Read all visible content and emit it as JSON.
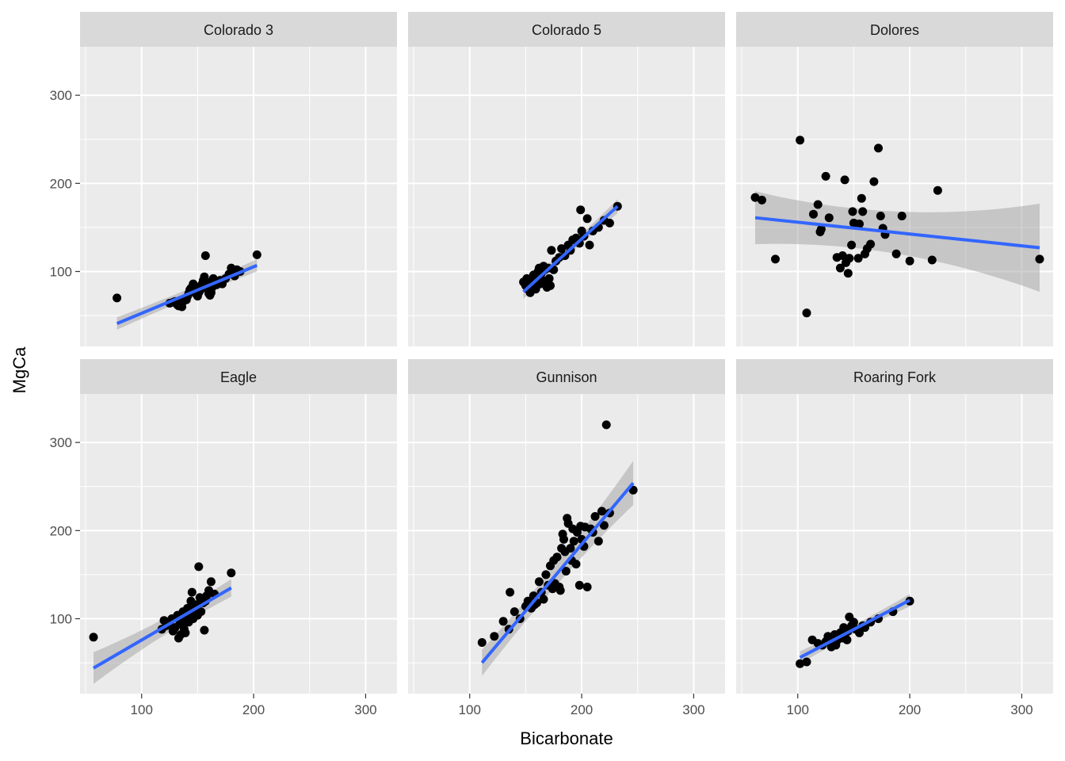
{
  "chart_data": {
    "type": "scatter",
    "title": "",
    "xlabel": "Bicarbonate",
    "ylabel": "MgCa",
    "xlim": [
      45,
      328
    ],
    "ylim": [
      15,
      355
    ],
    "x_ticks": [
      100,
      200,
      300
    ],
    "y_ticks": [
      100,
      200,
      300
    ],
    "grid": true,
    "facets": [
      {
        "name": "Colorado 3",
        "fit": {
          "x": [
            78,
            203
          ],
          "y": [
            41,
            107
          ],
          "se_width": [
            7,
            4,
            7
          ]
        },
        "points": [
          [
            78,
            70
          ],
          [
            125,
            64
          ],
          [
            128,
            65
          ],
          [
            130,
            66
          ],
          [
            132,
            62
          ],
          [
            133,
            61
          ],
          [
            135,
            64
          ],
          [
            136,
            60
          ],
          [
            138,
            67
          ],
          [
            140,
            68
          ],
          [
            141,
            72
          ],
          [
            142,
            75
          ],
          [
            143,
            79
          ],
          [
            144,
            81
          ],
          [
            145,
            82
          ],
          [
            146,
            86
          ],
          [
            147,
            80
          ],
          [
            148,
            77
          ],
          [
            149,
            74
          ],
          [
            150,
            72
          ],
          [
            151,
            76
          ],
          [
            152,
            78
          ],
          [
            153,
            84
          ],
          [
            154,
            86
          ],
          [
            155,
            90
          ],
          [
            156,
            94
          ],
          [
            157,
            118
          ],
          [
            158,
            88
          ],
          [
            159,
            80
          ],
          [
            160,
            75
          ],
          [
            161,
            73
          ],
          [
            162,
            76
          ],
          [
            163,
            82
          ],
          [
            164,
            92
          ],
          [
            165,
            88
          ],
          [
            167,
            85
          ],
          [
            170,
            90
          ],
          [
            172,
            86
          ],
          [
            175,
            92
          ],
          [
            178,
            97
          ],
          [
            180,
            104
          ],
          [
            183,
            95
          ],
          [
            185,
            102
          ],
          [
            188,
            100
          ],
          [
            203,
            119
          ]
        ]
      },
      {
        "name": "Colorado 5",
        "fit": {
          "x": [
            148,
            232
          ],
          "y": [
            77,
            174
          ],
          "se_width": [
            8,
            3,
            8
          ]
        },
        "points": [
          [
            148,
            88
          ],
          [
            150,
            84
          ],
          [
            151,
            92
          ],
          [
            152,
            80
          ],
          [
            153,
            86
          ],
          [
            154,
            76
          ],
          [
            155,
            82
          ],
          [
            156,
            90
          ],
          [
            157,
            96
          ],
          [
            158,
            84
          ],
          [
            159,
            80
          ],
          [
            160,
            92
          ],
          [
            161,
            100
          ],
          [
            162,
            104
          ],
          [
            163,
            86
          ],
          [
            164,
            98
          ],
          [
            165,
            90
          ],
          [
            166,
            106
          ],
          [
            167,
            102
          ],
          [
            168,
            88
          ],
          [
            169,
            82
          ],
          [
            170,
            104
          ],
          [
            171,
            92
          ],
          [
            172,
            84
          ],
          [
            173,
            124
          ],
          [
            175,
            102
          ],
          [
            177,
            112
          ],
          [
            180,
            116
          ],
          [
            182,
            126
          ],
          [
            185,
            118
          ],
          [
            188,
            130
          ],
          [
            190,
            124
          ],
          [
            192,
            136
          ],
          [
            195,
            138
          ],
          [
            198,
            132
          ],
          [
            199,
            170
          ],
          [
            200,
            146
          ],
          [
            202,
            140
          ],
          [
            205,
            160
          ],
          [
            207,
            130
          ],
          [
            210,
            146
          ],
          [
            215,
            150
          ],
          [
            220,
            158
          ],
          [
            225,
            155
          ],
          [
            232,
            174
          ]
        ]
      },
      {
        "name": "Dolores",
        "fit": {
          "x": [
            62,
            316
          ],
          "y": [
            161,
            127
          ],
          "se_width": [
            30,
            8,
            50
          ]
        },
        "points": [
          [
            62,
            184
          ],
          [
            68,
            181
          ],
          [
            80,
            114
          ],
          [
            102,
            249
          ],
          [
            108,
            53
          ],
          [
            114,
            165
          ],
          [
            118,
            176
          ],
          [
            120,
            145
          ],
          [
            121,
            148
          ],
          [
            125,
            208
          ],
          [
            128,
            161
          ],
          [
            135,
            116
          ],
          [
            138,
            104
          ],
          [
            140,
            118
          ],
          [
            142,
            204
          ],
          [
            143,
            110
          ],
          [
            145,
            98
          ],
          [
            146,
            115
          ],
          [
            148,
            130
          ],
          [
            149,
            168
          ],
          [
            150,
            155
          ],
          [
            152,
            154
          ],
          [
            154,
            115
          ],
          [
            155,
            154
          ],
          [
            157,
            183
          ],
          [
            158,
            168
          ],
          [
            160,
            120
          ],
          [
            162,
            126
          ],
          [
            165,
            131
          ],
          [
            168,
            202
          ],
          [
            172,
            240
          ],
          [
            174,
            163
          ],
          [
            176,
            149
          ],
          [
            178,
            142
          ],
          [
            188,
            120
          ],
          [
            193,
            163
          ],
          [
            200,
            112
          ],
          [
            220,
            113
          ],
          [
            225,
            192
          ],
          [
            316,
            114
          ]
        ]
      },
      {
        "name": "Eagle",
        "fit": {
          "x": [
            57,
            180
          ],
          "y": [
            44,
            135
          ],
          "se_width": [
            18,
            5,
            10
          ]
        },
        "points": [
          [
            57,
            79
          ],
          [
            118,
            88
          ],
          [
            120,
            98
          ],
          [
            122,
            92
          ],
          [
            125,
            95
          ],
          [
            127,
            100
          ],
          [
            128,
            86
          ],
          [
            130,
            90
          ],
          [
            132,
            104
          ],
          [
            133,
            78
          ],
          [
            134,
            94
          ],
          [
            135,
            82
          ],
          [
            136,
            96
          ],
          [
            137,
            108
          ],
          [
            138,
            88
          ],
          [
            139,
            84
          ],
          [
            140,
            102
          ],
          [
            141,
            112
          ],
          [
            142,
            96
          ],
          [
            143,
            108
          ],
          [
            144,
            120
          ],
          [
            145,
            130
          ],
          [
            146,
            100
          ],
          [
            147,
            110
          ],
          [
            148,
            116
          ],
          [
            150,
            104
          ],
          [
            151,
            159
          ],
          [
            152,
            124
          ],
          [
            153,
            108
          ],
          [
            155,
            118
          ],
          [
            156,
            87
          ],
          [
            157,
            120
          ],
          [
            158,
            126
          ],
          [
            160,
            132
          ],
          [
            162,
            142
          ],
          [
            165,
            128
          ],
          [
            180,
            152
          ]
        ]
      },
      {
        "name": "Gunnison",
        "fit": {
          "x": [
            111,
            246
          ],
          "y": [
            50,
            254
          ],
          "se_width": [
            15,
            5,
            25
          ]
        },
        "points": [
          [
            111,
            73
          ],
          [
            122,
            80
          ],
          [
            130,
            97
          ],
          [
            135,
            88
          ],
          [
            136,
            130
          ],
          [
            140,
            108
          ],
          [
            145,
            100
          ],
          [
            150,
            114
          ],
          [
            152,
            120
          ],
          [
            155,
            112
          ],
          [
            157,
            126
          ],
          [
            158,
            116
          ],
          [
            160,
            118
          ],
          [
            162,
            142
          ],
          [
            164,
            130
          ],
          [
            166,
            122
          ],
          [
            168,
            150
          ],
          [
            170,
            138
          ],
          [
            172,
            160
          ],
          [
            174,
            134
          ],
          [
            175,
            166
          ],
          [
            176,
            140
          ],
          [
            178,
            170
          ],
          [
            180,
            136
          ],
          [
            181,
            132
          ],
          [
            182,
            180
          ],
          [
            183,
            196
          ],
          [
            184,
            190
          ],
          [
            185,
            176
          ],
          [
            186,
            154
          ],
          [
            187,
            214
          ],
          [
            188,
            208
          ],
          [
            190,
            180
          ],
          [
            191,
            166
          ],
          [
            192,
            202
          ],
          [
            193,
            188
          ],
          [
            195,
            162
          ],
          [
            196,
            198
          ],
          [
            198,
            138
          ],
          [
            199,
            205
          ],
          [
            200,
            190
          ],
          [
            202,
            182
          ],
          [
            203,
            204
          ],
          [
            205,
            136
          ],
          [
            208,
            202
          ],
          [
            210,
            198
          ],
          [
            212,
            216
          ],
          [
            215,
            188
          ],
          [
            218,
            222
          ],
          [
            220,
            206
          ],
          [
            222,
            320
          ],
          [
            225,
            220
          ],
          [
            246,
            246
          ]
        ]
      },
      {
        "name": "Roaring Fork",
        "fit": {
          "x": [
            102,
            200
          ],
          "y": [
            56,
            121
          ],
          "se_width": [
            7,
            3,
            7
          ]
        },
        "points": [
          [
            102,
            49
          ],
          [
            108,
            51
          ],
          [
            113,
            76
          ],
          [
            118,
            72
          ],
          [
            122,
            70
          ],
          [
            125,
            74
          ],
          [
            127,
            80
          ],
          [
            130,
            68
          ],
          [
            132,
            78
          ],
          [
            133,
            82
          ],
          [
            134,
            70
          ],
          [
            135,
            75
          ],
          [
            136,
            80
          ],
          [
            138,
            84
          ],
          [
            140,
            78
          ],
          [
            141,
            90
          ],
          [
            142,
            82
          ],
          [
            144,
            76
          ],
          [
            145,
            86
          ],
          [
            146,
            102
          ],
          [
            148,
            92
          ],
          [
            150,
            96
          ],
          [
            152,
            88
          ],
          [
            155,
            84
          ],
          [
            158,
            92
          ],
          [
            160,
            90
          ],
          [
            165,
            96
          ],
          [
            172,
            100
          ],
          [
            185,
            108
          ],
          [
            200,
            120
          ]
        ]
      }
    ]
  }
}
